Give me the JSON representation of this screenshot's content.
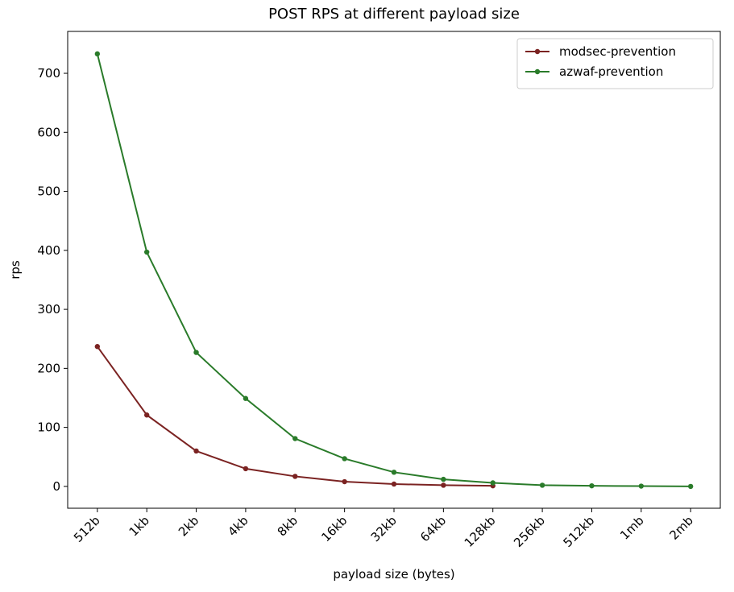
{
  "chart_data": {
    "type": "line",
    "title": "POST RPS at different payload size",
    "xlabel": "payload size (bytes)",
    "ylabel": "rps",
    "categories": [
      "512b",
      "1kb",
      "2kb",
      "4kb",
      "8kb",
      "16kb",
      "32kb",
      "64kb",
      "128kb",
      "256kb",
      "512kb",
      "1mb",
      "2mb"
    ],
    "series": [
      {
        "name": "modsec-prevention",
        "color": "#7b2322",
        "values": [
          237,
          121,
          60,
          30,
          17,
          8,
          4,
          2,
          1,
          null,
          null,
          null,
          null
        ]
      },
      {
        "name": "azwaf-prevention",
        "color": "#2a7b2a",
        "values": [
          733,
          397,
          227,
          149,
          81,
          47,
          24,
          12,
          6,
          2,
          1,
          0.5,
          0
        ]
      }
    ],
    "ylim": [
      -37,
      771
    ],
    "yticks": [
      0,
      100,
      200,
      300,
      400,
      500,
      600,
      700
    ],
    "legend": "upper right"
  }
}
